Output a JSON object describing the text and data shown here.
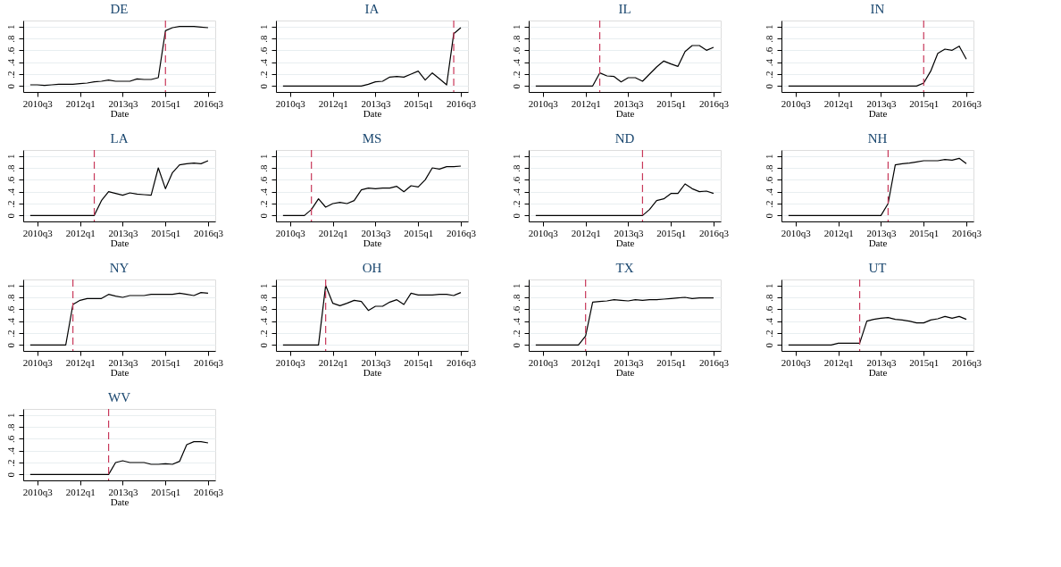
{
  "chart_data": [
    {
      "type": "line",
      "title": "DE",
      "xlabel": "Date",
      "color": "#000000",
      "line_style": "solid",
      "grid": "y",
      "xlim": [
        "2010-01",
        "2016-10"
      ],
      "ylim": [
        -0.1,
        1.1
      ],
      "xticks": [
        {
          "value": "2010-07",
          "label": "2010q3"
        },
        {
          "value": "2012-01",
          "label": "2012q1"
        },
        {
          "value": "2013-07",
          "label": "2013q3"
        },
        {
          "value": "2015-01",
          "label": "2015q1"
        },
        {
          "value": "2016-07",
          "label": "2016q3"
        }
      ],
      "yticks": [
        0,
        {
          "value": 0.2,
          "label": ".2"
        },
        {
          "value": 0.4,
          "label": ".4"
        },
        {
          "value": 0.6,
          "label": ".6"
        },
        {
          "value": 0.8,
          "label": ".8"
        },
        1
      ],
      "ref_lines": [
        {
          "axis": "x",
          "value": "2015-01",
          "color": "#c8385a",
          "line_style": "dashed"
        }
      ],
      "x": [
        "2010-04",
        "2010-07",
        "2010-10",
        "2011-01",
        "2011-04",
        "2011-07",
        "2011-10",
        "2012-01",
        "2012-04",
        "2012-07",
        "2012-10",
        "2013-01",
        "2013-04",
        "2013-07",
        "2013-10",
        "2014-01",
        "2014-04",
        "2014-07",
        "2014-10",
        "2015-01",
        "2015-04",
        "2015-07",
        "2015-10",
        "2016-01",
        "2016-04",
        "2016-07"
      ],
      "values": [
        0.02,
        0.02,
        0.01,
        0.02,
        0.03,
        0.03,
        0.03,
        0.04,
        0.05,
        0.07,
        0.08,
        0.1,
        0.08,
        0.08,
        0.08,
        0.12,
        0.11,
        0.11,
        0.14,
        0.93,
        0.98,
        1.0,
        1.0,
        1.0,
        0.99,
        0.98
      ]
    },
    {
      "type": "line",
      "title": "IA",
      "xlabel": "Date",
      "color": "#000000",
      "line_style": "solid",
      "grid": "y",
      "xlim": [
        "2010-01",
        "2016-10"
      ],
      "ylim": [
        -0.1,
        1.1
      ],
      "xticks": [
        {
          "value": "2010-07",
          "label": "2010q3"
        },
        {
          "value": "2012-01",
          "label": "2012q1"
        },
        {
          "value": "2013-07",
          "label": "2013q3"
        },
        {
          "value": "2015-01",
          "label": "2015q1"
        },
        {
          "value": "2016-07",
          "label": "2016q3"
        }
      ],
      "yticks": [
        0,
        {
          "value": 0.2,
          "label": ".2"
        },
        {
          "value": 0.4,
          "label": ".4"
        },
        {
          "value": 0.6,
          "label": ".6"
        },
        {
          "value": 0.8,
          "label": ".8"
        },
        1
      ],
      "ref_lines": [
        {
          "axis": "x",
          "value": "2016-04",
          "color": "#c8385a",
          "line_style": "dashed"
        }
      ],
      "x": [
        "2010-04",
        "2010-07",
        "2010-10",
        "2011-01",
        "2011-04",
        "2011-07",
        "2011-10",
        "2012-01",
        "2012-04",
        "2012-07",
        "2012-10",
        "2013-01",
        "2013-04",
        "2013-07",
        "2013-10",
        "2014-01",
        "2014-04",
        "2014-07",
        "2014-10",
        "2015-01",
        "2015-04",
        "2015-07",
        "2015-10",
        "2016-01",
        "2016-04",
        "2016-07"
      ],
      "values": [
        0,
        0,
        0,
        0,
        0,
        0,
        0,
        0,
        0,
        0,
        0,
        0,
        0.03,
        0.07,
        0.08,
        0.15,
        0.16,
        0.15,
        0.2,
        0.25,
        0.1,
        0.22,
        0.12,
        0.02,
        0.88,
        0.98
      ]
    },
    {
      "type": "line",
      "title": "IL",
      "xlabel": "Date",
      "color": "#000000",
      "line_style": "solid",
      "grid": "y",
      "xlim": [
        "2010-01",
        "2016-10"
      ],
      "ylim": [
        -0.1,
        1.1
      ],
      "xticks": [
        {
          "value": "2010-07",
          "label": "2010q3"
        },
        {
          "value": "2012-01",
          "label": "2012q1"
        },
        {
          "value": "2013-07",
          "label": "2013q3"
        },
        {
          "value": "2015-01",
          "label": "2015q1"
        },
        {
          "value": "2016-07",
          "label": "2016q3"
        }
      ],
      "yticks": [
        0,
        {
          "value": 0.2,
          "label": ".2"
        },
        {
          "value": 0.4,
          "label": ".4"
        },
        {
          "value": 0.6,
          "label": ".6"
        },
        {
          "value": 0.8,
          "label": ".8"
        },
        1
      ],
      "ref_lines": [
        {
          "axis": "x",
          "value": "2012-07",
          "color": "#c8385a",
          "line_style": "dashed"
        }
      ],
      "x": [
        "2010-04",
        "2010-07",
        "2010-10",
        "2011-01",
        "2011-04",
        "2011-07",
        "2011-10",
        "2012-01",
        "2012-04",
        "2012-07",
        "2012-10",
        "2013-01",
        "2013-04",
        "2013-07",
        "2013-10",
        "2014-01",
        "2014-04",
        "2014-07",
        "2014-10",
        "2015-01",
        "2015-04",
        "2015-07",
        "2015-10",
        "2016-01",
        "2016-04",
        "2016-07"
      ],
      "values": [
        0,
        0,
        0,
        0,
        0,
        0,
        0,
        0,
        0,
        0.22,
        0.17,
        0.16,
        0.07,
        0.14,
        0.14,
        0.08,
        0.2,
        0.32,
        0.42,
        0.37,
        0.33,
        0.58,
        0.68,
        0.68,
        0.6,
        0.65
      ]
    },
    {
      "type": "line",
      "title": "IN",
      "xlabel": "Date",
      "color": "#000000",
      "line_style": "solid",
      "grid": "y",
      "xlim": [
        "2010-01",
        "2016-10"
      ],
      "ylim": [
        -0.1,
        1.1
      ],
      "xticks": [
        {
          "value": "2010-07",
          "label": "2010q3"
        },
        {
          "value": "2012-01",
          "label": "2012q1"
        },
        {
          "value": "2013-07",
          "label": "2013q3"
        },
        {
          "value": "2015-01",
          "label": "2015q1"
        },
        {
          "value": "2016-07",
          "label": "2016q3"
        }
      ],
      "yticks": [
        0,
        {
          "value": 0.2,
          "label": ".2"
        },
        {
          "value": 0.4,
          "label": ".4"
        },
        {
          "value": 0.6,
          "label": ".6"
        },
        {
          "value": 0.8,
          "label": ".8"
        },
        1
      ],
      "ref_lines": [
        {
          "axis": "x",
          "value": "2015-01",
          "color": "#c8385a",
          "line_style": "dashed"
        }
      ],
      "x": [
        "2010-04",
        "2010-07",
        "2010-10",
        "2011-01",
        "2011-04",
        "2011-07",
        "2011-10",
        "2012-01",
        "2012-04",
        "2012-07",
        "2012-10",
        "2013-01",
        "2013-04",
        "2013-07",
        "2013-10",
        "2014-01",
        "2014-04",
        "2014-07",
        "2014-10",
        "2015-01",
        "2015-04",
        "2015-07",
        "2015-10",
        "2016-01",
        "2016-04",
        "2016-07"
      ],
      "values": [
        0,
        0,
        0,
        0,
        0,
        0,
        0,
        0,
        0,
        0,
        0,
        0,
        0,
        0,
        0,
        0,
        0,
        0,
        0,
        0.05,
        0.25,
        0.55,
        0.62,
        0.6,
        0.67,
        0.45
      ]
    },
    {
      "type": "line",
      "title": "LA",
      "xlabel": "Date",
      "color": "#000000",
      "line_style": "solid",
      "grid": "y",
      "xlim": [
        "2010-01",
        "2016-10"
      ],
      "ylim": [
        -0.1,
        1.1
      ],
      "xticks": [
        {
          "value": "2010-07",
          "label": "2010q3"
        },
        {
          "value": "2012-01",
          "label": "2012q1"
        },
        {
          "value": "2013-07",
          "label": "2013q3"
        },
        {
          "value": "2015-01",
          "label": "2015q1"
        },
        {
          "value": "2016-07",
          "label": "2016q3"
        }
      ],
      "yticks": [
        0,
        {
          "value": 0.2,
          "label": ".2"
        },
        {
          "value": 0.4,
          "label": ".4"
        },
        {
          "value": 0.6,
          "label": ".6"
        },
        {
          "value": 0.8,
          "label": ".8"
        },
        1
      ],
      "ref_lines": [
        {
          "axis": "x",
          "value": "2012-07",
          "color": "#c8385a",
          "line_style": "dashed"
        }
      ],
      "x": [
        "2010-04",
        "2010-07",
        "2010-10",
        "2011-01",
        "2011-04",
        "2011-07",
        "2011-10",
        "2012-01",
        "2012-04",
        "2012-07",
        "2012-10",
        "2013-01",
        "2013-04",
        "2013-07",
        "2013-10",
        "2014-01",
        "2014-04",
        "2014-07",
        "2014-10",
        "2015-01",
        "2015-04",
        "2015-07",
        "2015-10",
        "2016-01",
        "2016-04",
        "2016-07"
      ],
      "values": [
        0,
        0,
        0,
        0,
        0,
        0,
        0,
        0,
        0,
        0,
        0.25,
        0.4,
        0.37,
        0.34,
        0.38,
        0.36,
        0.35,
        0.34,
        0.8,
        0.45,
        0.72,
        0.85,
        0.87,
        0.88,
        0.87,
        0.92
      ]
    },
    {
      "type": "line",
      "title": "MS",
      "xlabel": "Date",
      "color": "#000000",
      "line_style": "solid",
      "grid": "y",
      "xlim": [
        "2010-01",
        "2016-10"
      ],
      "ylim": [
        -0.1,
        1.1
      ],
      "xticks": [
        {
          "value": "2010-07",
          "label": "2010q3"
        },
        {
          "value": "2012-01",
          "label": "2012q1"
        },
        {
          "value": "2013-07",
          "label": "2013q3"
        },
        {
          "value": "2015-01",
          "label": "2015q1"
        },
        {
          "value": "2016-07",
          "label": "2016q3"
        }
      ],
      "yticks": [
        0,
        {
          "value": 0.2,
          "label": ".2"
        },
        {
          "value": 0.4,
          "label": ".4"
        },
        {
          "value": 0.6,
          "label": ".6"
        },
        {
          "value": 0.8,
          "label": ".8"
        },
        1
      ],
      "ref_lines": [
        {
          "axis": "x",
          "value": "2011-04",
          "color": "#c8385a",
          "line_style": "dashed"
        }
      ],
      "x": [
        "2010-04",
        "2010-07",
        "2010-10",
        "2011-01",
        "2011-04",
        "2011-07",
        "2011-10",
        "2012-01",
        "2012-04",
        "2012-07",
        "2012-10",
        "2013-01",
        "2013-04",
        "2013-07",
        "2013-10",
        "2014-01",
        "2014-04",
        "2014-07",
        "2014-10",
        "2015-01",
        "2015-04",
        "2015-07",
        "2015-10",
        "2016-01",
        "2016-04",
        "2016-07"
      ],
      "values": [
        0,
        0,
        0,
        0,
        0.1,
        0.28,
        0.14,
        0.2,
        0.22,
        0.2,
        0.25,
        0.43,
        0.46,
        0.45,
        0.46,
        0.46,
        0.49,
        0.4,
        0.5,
        0.48,
        0.6,
        0.8,
        0.78,
        0.82,
        0.82,
        0.83
      ]
    },
    {
      "type": "line",
      "title": "ND",
      "xlabel": "Date",
      "color": "#000000",
      "line_style": "solid",
      "grid": "y",
      "xlim": [
        "2010-01",
        "2016-10"
      ],
      "ylim": [
        -0.1,
        1.1
      ],
      "xticks": [
        {
          "value": "2010-07",
          "label": "2010q3"
        },
        {
          "value": "2012-01",
          "label": "2012q1"
        },
        {
          "value": "2013-07",
          "label": "2013q3"
        },
        {
          "value": "2015-01",
          "label": "2015q1"
        },
        {
          "value": "2016-07",
          "label": "2016q3"
        }
      ],
      "yticks": [
        0,
        {
          "value": 0.2,
          "label": ".2"
        },
        {
          "value": 0.4,
          "label": ".4"
        },
        {
          "value": 0.6,
          "label": ".6"
        },
        {
          "value": 0.8,
          "label": ".8"
        },
        1
      ],
      "ref_lines": [
        {
          "axis": "x",
          "value": "2014-01",
          "color": "#c8385a",
          "line_style": "dashed"
        }
      ],
      "x": [
        "2010-04",
        "2010-07",
        "2010-10",
        "2011-01",
        "2011-04",
        "2011-07",
        "2011-10",
        "2012-01",
        "2012-04",
        "2012-07",
        "2012-10",
        "2013-01",
        "2013-04",
        "2013-07",
        "2013-10",
        "2014-01",
        "2014-04",
        "2014-07",
        "2014-10",
        "2015-01",
        "2015-04",
        "2015-07",
        "2015-10",
        "2016-01",
        "2016-04",
        "2016-07"
      ],
      "values": [
        0,
        0,
        0,
        0,
        0,
        0,
        0,
        0,
        0,
        0,
        0,
        0,
        0,
        0,
        0,
        0,
        0.1,
        0.25,
        0.28,
        0.37,
        0.37,
        0.53,
        0.45,
        0.4,
        0.41,
        0.37
      ]
    },
    {
      "type": "line",
      "title": "NH",
      "xlabel": "Date",
      "color": "#000000",
      "line_style": "solid",
      "grid": "y",
      "xlim": [
        "2010-01",
        "2016-10"
      ],
      "ylim": [
        -0.1,
        1.1
      ],
      "xticks": [
        {
          "value": "2010-07",
          "label": "2010q3"
        },
        {
          "value": "2012-01",
          "label": "2012q1"
        },
        {
          "value": "2013-07",
          "label": "2013q3"
        },
        {
          "value": "2015-01",
          "label": "2015q1"
        },
        {
          "value": "2016-07",
          "label": "2016q3"
        }
      ],
      "yticks": [
        0,
        {
          "value": 0.2,
          "label": ".2"
        },
        {
          "value": 0.4,
          "label": ".4"
        },
        {
          "value": 0.6,
          "label": ".6"
        },
        {
          "value": 0.8,
          "label": ".8"
        },
        1
      ],
      "ref_lines": [
        {
          "axis": "x",
          "value": "2013-10",
          "color": "#c8385a",
          "line_style": "dashed"
        }
      ],
      "x": [
        "2010-04",
        "2010-07",
        "2010-10",
        "2011-01",
        "2011-04",
        "2011-07",
        "2011-10",
        "2012-01",
        "2012-04",
        "2012-07",
        "2012-10",
        "2013-01",
        "2013-04",
        "2013-07",
        "2013-10",
        "2014-01",
        "2014-04",
        "2014-07",
        "2014-10",
        "2015-01",
        "2015-04",
        "2015-07",
        "2015-10",
        "2016-01",
        "2016-04",
        "2016-07"
      ],
      "values": [
        0,
        0,
        0,
        0,
        0,
        0,
        0,
        0,
        0,
        0,
        0,
        0,
        0,
        0,
        0.2,
        0.85,
        0.87,
        0.88,
        0.9,
        0.92,
        0.92,
        0.92,
        0.94,
        0.93,
        0.96,
        0.87
      ]
    },
    {
      "type": "line",
      "title": "NY",
      "xlabel": "Date",
      "color": "#000000",
      "line_style": "solid",
      "grid": "y",
      "xlim": [
        "2010-01",
        "2016-10"
      ],
      "ylim": [
        -0.1,
        1.1
      ],
      "xticks": [
        {
          "value": "2010-07",
          "label": "2010q3"
        },
        {
          "value": "2012-01",
          "label": "2012q1"
        },
        {
          "value": "2013-07",
          "label": "2013q3"
        },
        {
          "value": "2015-01",
          "label": "2015q1"
        },
        {
          "value": "2016-07",
          "label": "2016q3"
        }
      ],
      "yticks": [
        0,
        {
          "value": 0.2,
          "label": ".2"
        },
        {
          "value": 0.4,
          "label": ".4"
        },
        {
          "value": 0.6,
          "label": ".6"
        },
        {
          "value": 0.8,
          "label": ".8"
        },
        1
      ],
      "ref_lines": [
        {
          "axis": "x",
          "value": "2011-10",
          "color": "#c8385a",
          "line_style": "dashed"
        }
      ],
      "x": [
        "2010-04",
        "2010-07",
        "2010-10",
        "2011-01",
        "2011-04",
        "2011-07",
        "2011-10",
        "2012-01",
        "2012-04",
        "2012-07",
        "2012-10",
        "2013-01",
        "2013-04",
        "2013-07",
        "2013-10",
        "2014-01",
        "2014-04",
        "2014-07",
        "2014-10",
        "2015-01",
        "2015-04",
        "2015-07",
        "2015-10",
        "2016-01",
        "2016-04",
        "2016-07"
      ],
      "values": [
        0,
        0,
        0,
        0,
        0,
        0,
        0.68,
        0.75,
        0.78,
        0.78,
        0.78,
        0.85,
        0.82,
        0.8,
        0.83,
        0.83,
        0.83,
        0.85,
        0.85,
        0.85,
        0.85,
        0.87,
        0.85,
        0.83,
        0.88,
        0.87
      ]
    },
    {
      "type": "line",
      "title": "OH",
      "xlabel": "Date",
      "color": "#000000",
      "line_style": "solid",
      "grid": "y",
      "xlim": [
        "2010-01",
        "2016-10"
      ],
      "ylim": [
        -0.1,
        1.1
      ],
      "xticks": [
        {
          "value": "2010-07",
          "label": "2010q3"
        },
        {
          "value": "2012-01",
          "label": "2012q1"
        },
        {
          "value": "2013-07",
          "label": "2013q3"
        },
        {
          "value": "2015-01",
          "label": "2015q1"
        },
        {
          "value": "2016-07",
          "label": "2016q3"
        }
      ],
      "yticks": [
        0,
        {
          "value": 0.2,
          "label": ".2"
        },
        {
          "value": 0.4,
          "label": ".4"
        },
        {
          "value": 0.6,
          "label": ".6"
        },
        {
          "value": 0.8,
          "label": ".8"
        },
        1
      ],
      "ref_lines": [
        {
          "axis": "x",
          "value": "2011-10",
          "color": "#c8385a",
          "line_style": "dashed"
        }
      ],
      "x": [
        "2010-04",
        "2010-07",
        "2010-10",
        "2011-01",
        "2011-04",
        "2011-07",
        "2011-10",
        "2012-01",
        "2012-04",
        "2012-07",
        "2012-10",
        "2013-01",
        "2013-04",
        "2013-07",
        "2013-10",
        "2014-01",
        "2014-04",
        "2014-07",
        "2014-10",
        "2015-01",
        "2015-04",
        "2015-07",
        "2015-10",
        "2016-01",
        "2016-04",
        "2016-07"
      ],
      "values": [
        0,
        0,
        0,
        0,
        0,
        0,
        1.0,
        0.7,
        0.66,
        0.7,
        0.75,
        0.73,
        0.58,
        0.65,
        0.65,
        0.72,
        0.76,
        0.68,
        0.87,
        0.84,
        0.84,
        0.84,
        0.85,
        0.85,
        0.83,
        0.88
      ]
    },
    {
      "type": "line",
      "title": "TX",
      "xlabel": "Date",
      "color": "#000000",
      "line_style": "solid",
      "grid": "y",
      "xlim": [
        "2010-01",
        "2016-10"
      ],
      "ylim": [
        -0.1,
        1.1
      ],
      "xticks": [
        {
          "value": "2010-07",
          "label": "2010q3"
        },
        {
          "value": "2012-01",
          "label": "2012q1"
        },
        {
          "value": "2013-07",
          "label": "2013q3"
        },
        {
          "value": "2015-01",
          "label": "2015q1"
        },
        {
          "value": "2016-07",
          "label": "2016q3"
        }
      ],
      "yticks": [
        0,
        {
          "value": 0.2,
          "label": ".2"
        },
        {
          "value": 0.4,
          "label": ".4"
        },
        {
          "value": 0.6,
          "label": ".6"
        },
        {
          "value": 0.8,
          "label": ".8"
        },
        1
      ],
      "ref_lines": [
        {
          "axis": "x",
          "value": "2012-01",
          "color": "#c8385a",
          "line_style": "dashed"
        }
      ],
      "x": [
        "2010-04",
        "2010-07",
        "2010-10",
        "2011-01",
        "2011-04",
        "2011-07",
        "2011-10",
        "2012-01",
        "2012-04",
        "2012-07",
        "2012-10",
        "2013-01",
        "2013-04",
        "2013-07",
        "2013-10",
        "2014-01",
        "2014-04",
        "2014-07",
        "2014-10",
        "2015-01",
        "2015-04",
        "2015-07",
        "2015-10",
        "2016-01",
        "2016-04",
        "2016-07"
      ],
      "values": [
        0,
        0,
        0,
        0,
        0,
        0,
        0,
        0.15,
        0.72,
        0.73,
        0.74,
        0.76,
        0.75,
        0.74,
        0.76,
        0.75,
        0.76,
        0.76,
        0.77,
        0.78,
        0.79,
        0.8,
        0.78,
        0.79,
        0.79,
        0.79
      ]
    },
    {
      "type": "line",
      "title": "UT",
      "xlabel": "Date",
      "color": "#000000",
      "line_style": "solid",
      "grid": "y",
      "xlim": [
        "2010-01",
        "2016-10"
      ],
      "ylim": [
        -0.1,
        1.1
      ],
      "xticks": [
        {
          "value": "2010-07",
          "label": "2010q3"
        },
        {
          "value": "2012-01",
          "label": "2012q1"
        },
        {
          "value": "2013-07",
          "label": "2013q3"
        },
        {
          "value": "2015-01",
          "label": "2015q1"
        },
        {
          "value": "2016-07",
          "label": "2016q3"
        }
      ],
      "yticks": [
        0,
        {
          "value": 0.2,
          "label": ".2"
        },
        {
          "value": 0.4,
          "label": ".4"
        },
        {
          "value": 0.6,
          "label": ".6"
        },
        {
          "value": 0.8,
          "label": ".8"
        },
        1
      ],
      "ref_lines": [
        {
          "axis": "x",
          "value": "2012-10",
          "color": "#c8385a",
          "line_style": "dashed"
        }
      ],
      "x": [
        "2010-04",
        "2010-07",
        "2010-10",
        "2011-01",
        "2011-04",
        "2011-07",
        "2011-10",
        "2012-01",
        "2012-04",
        "2012-07",
        "2012-10",
        "2013-01",
        "2013-04",
        "2013-07",
        "2013-10",
        "2014-01",
        "2014-04",
        "2014-07",
        "2014-10",
        "2015-01",
        "2015-04",
        "2015-07",
        "2015-10",
        "2016-01",
        "2016-04",
        "2016-07"
      ],
      "values": [
        0,
        0,
        0,
        0,
        0,
        0,
        0,
        0.03,
        0.03,
        0.03,
        0.03,
        0.4,
        0.43,
        0.45,
        0.46,
        0.43,
        0.42,
        0.4,
        0.37,
        0.37,
        0.42,
        0.44,
        0.48,
        0.45,
        0.48,
        0.43
      ]
    },
    {
      "type": "line",
      "title": "WV",
      "xlabel": "Date",
      "color": "#000000",
      "line_style": "solid",
      "grid": "y",
      "xlim": [
        "2010-01",
        "2016-10"
      ],
      "ylim": [
        -0.1,
        1.1
      ],
      "xticks": [
        {
          "value": "2010-07",
          "label": "2010q3"
        },
        {
          "value": "2012-01",
          "label": "2012q1"
        },
        {
          "value": "2013-07",
          "label": "2013q3"
        },
        {
          "value": "2015-01",
          "label": "2015q1"
        },
        {
          "value": "2016-07",
          "label": "2016q3"
        }
      ],
      "yticks": [
        0,
        {
          "value": 0.2,
          "label": ".2"
        },
        {
          "value": 0.4,
          "label": ".4"
        },
        {
          "value": 0.6,
          "label": ".6"
        },
        {
          "value": 0.8,
          "label": ".8"
        },
        1
      ],
      "ref_lines": [
        {
          "axis": "x",
          "value": "2013-01",
          "color": "#c8385a",
          "line_style": "dashed"
        }
      ],
      "x": [
        "2010-04",
        "2010-07",
        "2010-10",
        "2011-01",
        "2011-04",
        "2011-07",
        "2011-10",
        "2012-01",
        "2012-04",
        "2012-07",
        "2012-10",
        "2013-01",
        "2013-04",
        "2013-07",
        "2013-10",
        "2014-01",
        "2014-04",
        "2014-07",
        "2014-10",
        "2015-01",
        "2015-04",
        "2015-07",
        "2015-10",
        "2016-01",
        "2016-04",
        "2016-07"
      ],
      "values": [
        0,
        0,
        0,
        0,
        0,
        0,
        0,
        0,
        0,
        0,
        0,
        0,
        0.2,
        0.23,
        0.2,
        0.2,
        0.2,
        0.17,
        0.17,
        0.18,
        0.17,
        0.22,
        0.5,
        0.55,
        0.55,
        0.53
      ]
    }
  ]
}
